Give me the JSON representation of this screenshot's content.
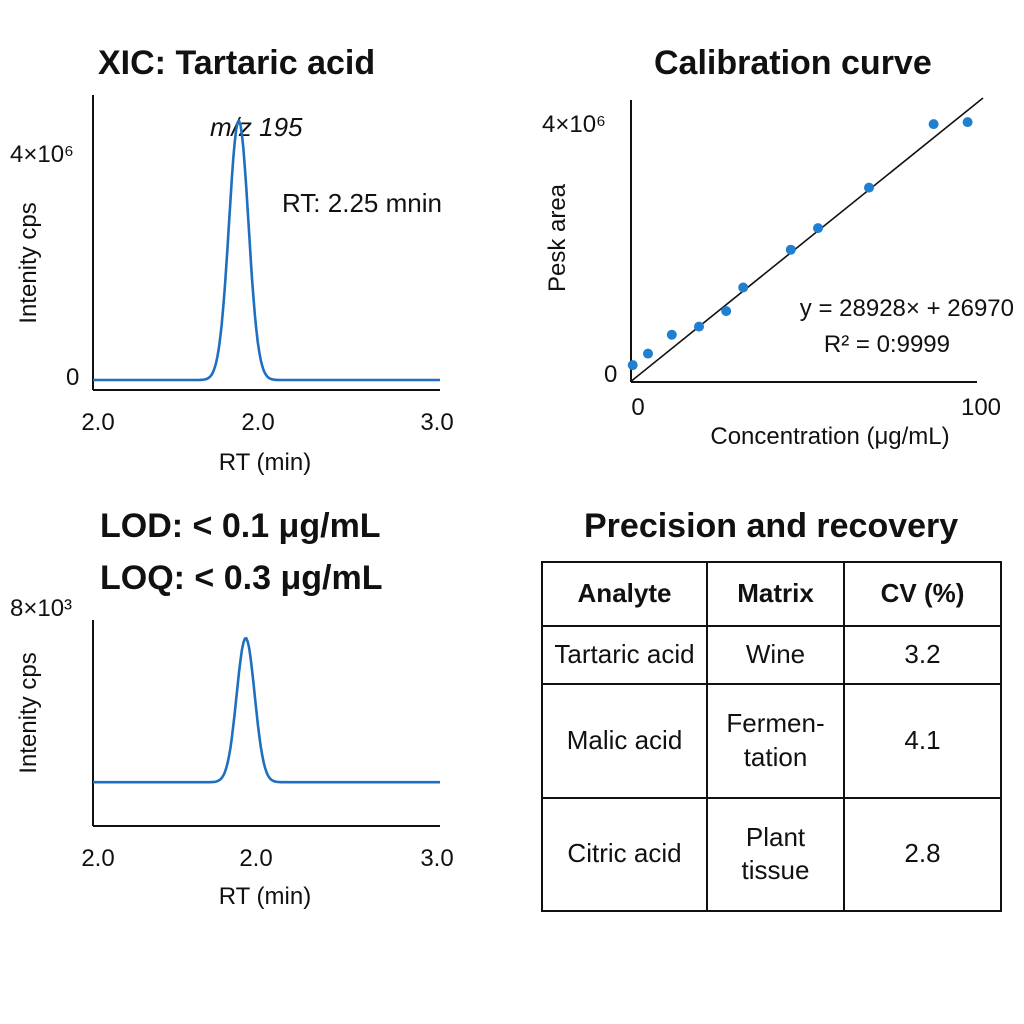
{
  "panels": {
    "xic": {
      "title": "XIC: Tartaric acid",
      "annotation_mz": "m/z 195",
      "annotation_rt": "RT: 2.25 mnin"
    },
    "calibration": {
      "title": "Calibration curve",
      "equation": "y = 28928× + 26970",
      "r2": "R² = 0:9999"
    },
    "lod": {
      "lod_text": "LOD: < 0.1 μg/mL",
      "loq_text": "LOQ: < 0.3 μg/mL"
    },
    "precision": {
      "title": "Precision and recovery",
      "headers": [
        "Analyte",
        "Matrix",
        "CV (%)"
      ],
      "rows": [
        [
          "Tartaric acid",
          "Wine",
          "3.2"
        ],
        [
          "Malic acid",
          "Fermen-tation",
          "4.1"
        ],
        [
          "Citric acid",
          "Plant tissue",
          "2.8"
        ]
      ]
    }
  },
  "chart_data": [
    {
      "type": "line",
      "title": "XIC: Tartaric acid",
      "xlabel": "RT (min)",
      "ylabel": "Intenity cps",
      "x_tick_labels": [
        "2.0",
        "2.0",
        "3.0"
      ],
      "y_tick_labels": [
        "0",
        "4×10⁶"
      ],
      "ylim": [
        0,
        4400000
      ],
      "grid": false,
      "series": [
        {
          "peak_x": 0.42,
          "peak_y": 4000000,
          "baseline": 0,
          "color": "#1f6fc0"
        }
      ]
    },
    {
      "type": "scatter",
      "title": "Calibration curve",
      "xlabel": "Concentration (μg/mL)",
      "ylabel": "Pesk area",
      "x_tick_labels": [
        "0",
        "100"
      ],
      "y_tick_labels": [
        "0",
        "4×10⁶"
      ],
      "xlim": [
        0,
        100
      ],
      "ylim": [
        0,
        4000000
      ],
      "grid": false,
      "points": [
        {
          "x": 0.5,
          "y": 250000
        },
        {
          "x": 5,
          "y": 420000
        },
        {
          "x": 12,
          "y": 700000
        },
        {
          "x": 20,
          "y": 820000
        },
        {
          "x": 28,
          "y": 1050000
        },
        {
          "x": 33,
          "y": 1400000
        },
        {
          "x": 47,
          "y": 1960000
        },
        {
          "x": 55,
          "y": 2280000
        },
        {
          "x": 70,
          "y": 2880000
        },
        {
          "x": 89,
          "y": 3820000
        },
        {
          "x": 99,
          "y": 3850000
        }
      ],
      "fit_line": {
        "x": [
          0,
          100
        ],
        "y": [
          10000,
          4000000
        ]
      },
      "point_color": "#1f7fd0"
    },
    {
      "type": "line",
      "xlabel": "RT (min)",
      "ylabel": "Intenity cps",
      "x_tick_labels": [
        "2.0",
        "2.0",
        "3.0"
      ],
      "y_tick_labels": [
        "8×10³"
      ],
      "ylim": [
        0,
        8000
      ],
      "grid": false,
      "series": [
        {
          "peak_x": 0.44,
          "peak_y": 7300,
          "baseline": 1700,
          "color": "#1f6fc0"
        }
      ]
    }
  ]
}
